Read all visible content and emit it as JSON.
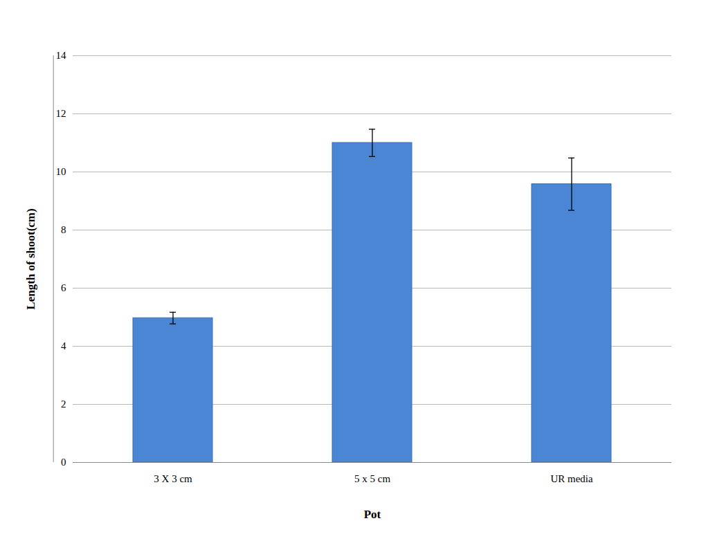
{
  "chart_data": {
    "type": "bar",
    "x_label": "Pot",
    "y_label": "Length of shoot(cm)",
    "categories": [
      "3 X 3 cm",
      "5 x 5 cm",
      "UR media"
    ],
    "values": [
      4.97,
      11.0,
      9.58
    ],
    "errors": [
      0.2,
      0.47,
      0.9
    ],
    "color": "#4a86d4",
    "ylim": [
      0,
      14
    ],
    "yticks": [
      0,
      2,
      4,
      6,
      8,
      10,
      12,
      14
    ],
    "grid": true
  }
}
